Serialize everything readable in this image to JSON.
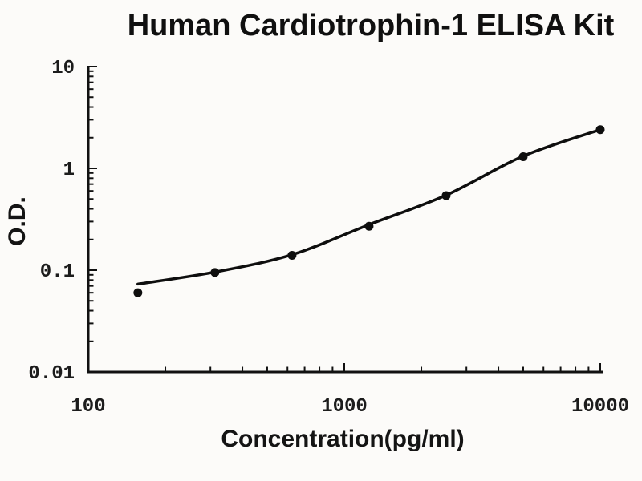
{
  "chart_data": {
    "type": "line",
    "title": "Human Cardiotrophin-1 ELISA Kit",
    "xlabel": "Concentration(pg/ml)",
    "ylabel": "O.D.",
    "x_scale": "log",
    "y_scale": "log",
    "xlim": [
      100,
      10000
    ],
    "ylim": [
      0.01,
      10
    ],
    "x_ticks": [
      100,
      1000,
      10000
    ],
    "x_tick_labels": [
      "100",
      "1000",
      "10000"
    ],
    "y_ticks": [
      0.01,
      0.1,
      1,
      10
    ],
    "y_tick_labels": [
      "0.01",
      "0.1",
      "1",
      "10"
    ],
    "grid": false,
    "legend": "none",
    "axis_color": "#111111",
    "line_color": "#0e0e0e",
    "marker_color": "#0e0e0e",
    "series": [
      {
        "name": "standard curve data points",
        "marker": "filled-circle",
        "x": [
          156.25,
          312.5,
          625,
          1250,
          2500,
          5000,
          10000
        ],
        "y": [
          0.06,
          0.095,
          0.14,
          0.27,
          0.54,
          1.3,
          2.4
        ]
      }
    ],
    "fit_curve": {
      "name": "fitted standard curve line",
      "x": [
        156.25,
        312.5,
        625,
        1250,
        2500,
        5000,
        10000
      ],
      "y": [
        0.073,
        0.096,
        0.142,
        0.28,
        0.545,
        1.32,
        2.4
      ]
    }
  }
}
